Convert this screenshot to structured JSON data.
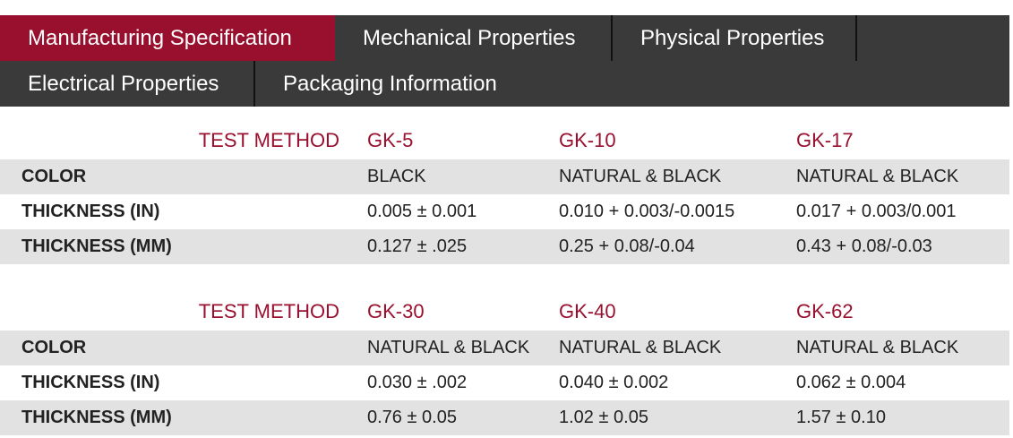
{
  "tabs": [
    {
      "label": "Manufacturing Specification",
      "active": true
    },
    {
      "label": "Mechanical Properties",
      "active": false
    },
    {
      "label": "Physical Properties",
      "active": false
    },
    {
      "label": "Electrical Properties",
      "active": false
    },
    {
      "label": "Packaging Information",
      "active": false
    }
  ],
  "colors": {
    "accent": "#99102f",
    "tab_bg": "#3a3a3a",
    "row_shade": "#e2e2e2"
  },
  "tables": [
    {
      "header": {
        "method": "TEST METHOD",
        "cols": [
          "GK-5",
          "GK-10",
          "GK-17"
        ]
      },
      "rows": [
        {
          "label": "COLOR",
          "values": [
            "BLACK",
            "NATURAL & BLACK",
            "NATURAL & BLACK"
          ]
        },
        {
          "label": "THICKNESS (IN)",
          "values": [
            "0.005 ± 0.001",
            "0.010 + 0.003/-0.0015",
            "0.017 + 0.003/0.001"
          ]
        },
        {
          "label": "THICKNESS (MM)",
          "values": [
            "0.127 ± .025",
            "0.25 + 0.08/-0.04",
            "0.43 + 0.08/-0.03"
          ]
        }
      ]
    },
    {
      "header": {
        "method": "TEST METHOD",
        "cols": [
          "GK-30",
          "GK-40",
          "GK-62"
        ]
      },
      "rows": [
        {
          "label": "COLOR",
          "values": [
            "NATURAL & BLACK",
            "NATURAL & BLACK",
            "NATURAL & BLACK"
          ]
        },
        {
          "label": "THICKNESS (IN)",
          "values": [
            "0.030 ± .002",
            "0.040 ± 0.002",
            "0.062 ± 0.004"
          ]
        },
        {
          "label": "THICKNESS (MM)",
          "values": [
            "0.76 ± 0.05",
            "1.02 ± 0.05",
            "1.57 ± 0.10"
          ]
        }
      ]
    }
  ]
}
